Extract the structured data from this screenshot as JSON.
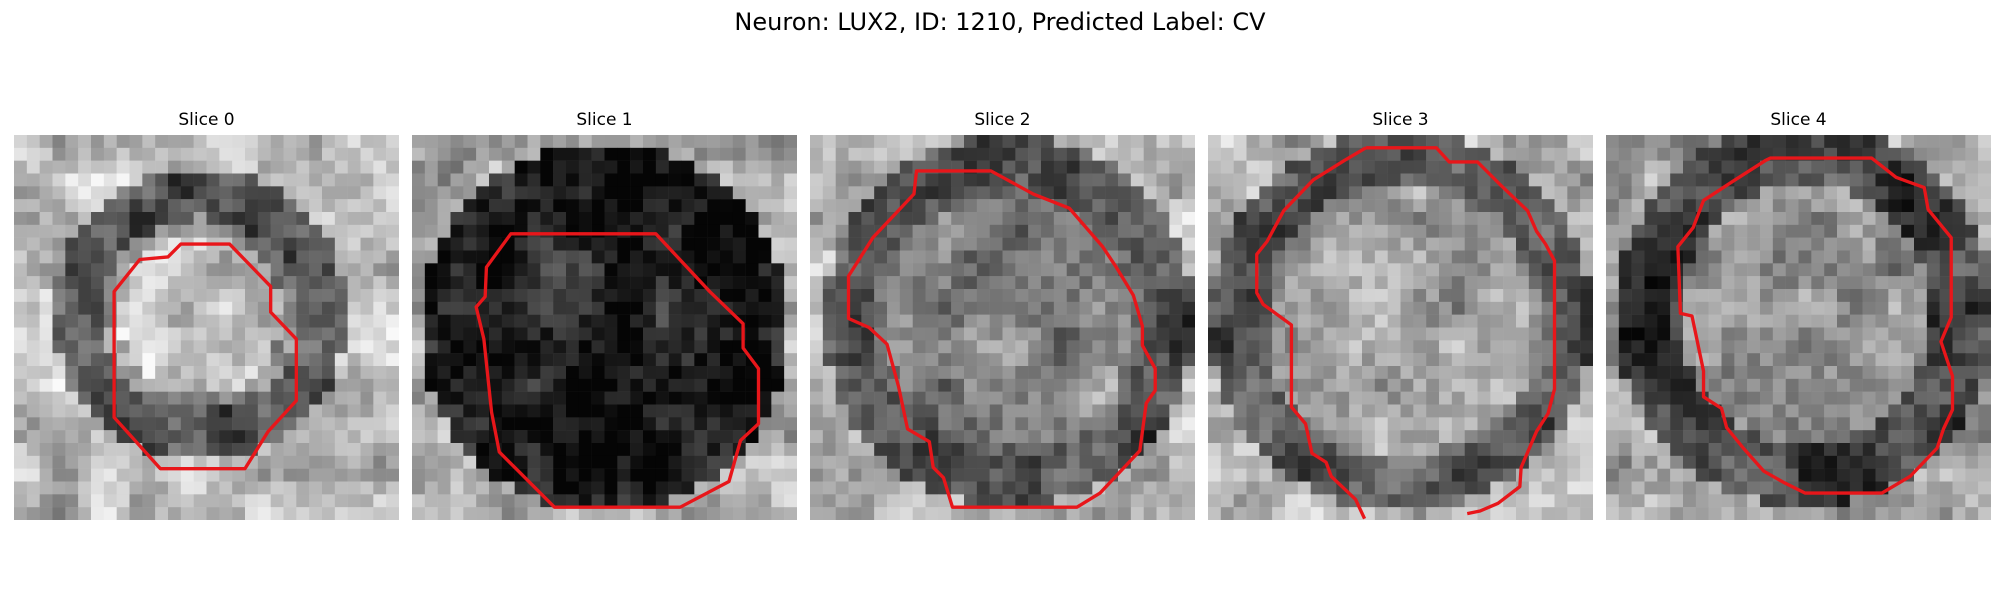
{
  "figure": {
    "title": "Neuron: LUX2, ID: 1210, Predicted Label: CV"
  },
  "panels": [
    {
      "title": "Slice 0"
    },
    {
      "title": "Slice 1"
    },
    {
      "title": "Slice 2"
    },
    {
      "title": "Slice 3"
    },
    {
      "title": "Slice 4"
    }
  ],
  "colors": {
    "contour": "#e8161a"
  }
}
